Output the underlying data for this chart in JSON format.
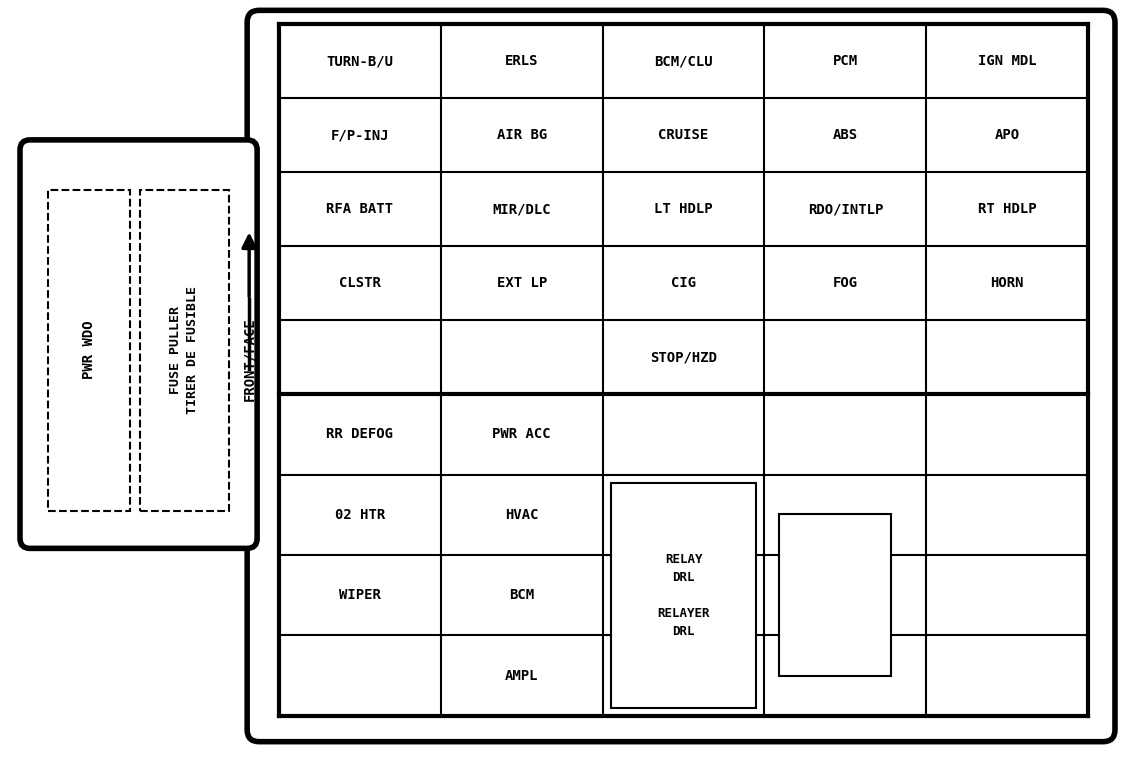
{
  "bg_color": "#ffffff",
  "line_color": "#000000",
  "cells": [
    [
      "TURN-B/U",
      "ERLS",
      "BCM/CLU",
      "PCM",
      "IGN MDL"
    ],
    [
      "F/P-INJ",
      "AIR BG",
      "CRUISE",
      "ABS",
      "APO"
    ],
    [
      "RFA BATT",
      "MIR/DLC",
      "LT HDLP",
      "RDO/INTLP",
      "RT HDLP"
    ],
    [
      "CLSTR",
      "EXT LP",
      "CIG",
      "FOG",
      "HORN"
    ],
    [
      "",
      "",
      "STOP/HZD",
      "",
      ""
    ],
    [
      "RR DEFOG",
      "PWR ACC",
      "",
      "",
      ""
    ],
    [
      "02 HTR",
      "HVAC",
      "",
      "",
      ""
    ],
    [
      "WIPER",
      "BCM",
      "",
      "",
      ""
    ],
    [
      "",
      "AMPL",
      "",
      "",
      ""
    ]
  ],
  "font_size_cell": 10,
  "relay_label": "RELAY\nDRL\n\nRELAYER\nDRL"
}
